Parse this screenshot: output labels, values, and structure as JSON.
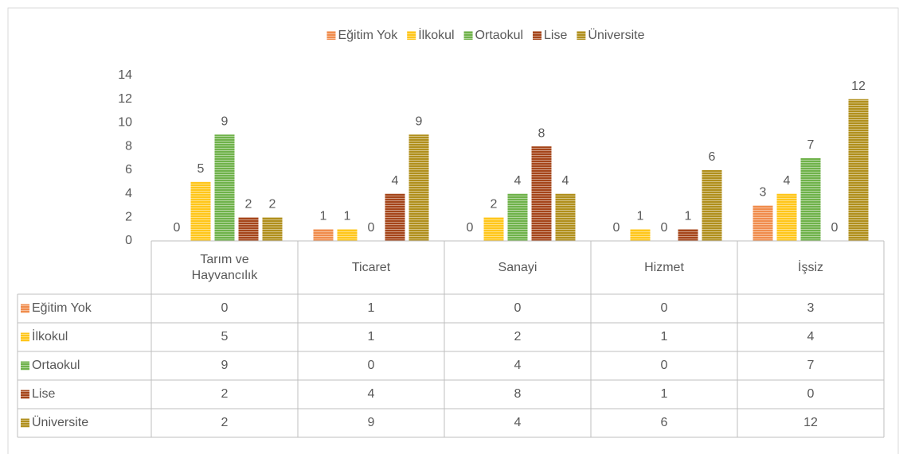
{
  "chart_data": {
    "type": "bar",
    "categories": [
      "Tarım ve Hayvancılık",
      "Ticaret",
      "Sanayi",
      "Hizmet",
      "İşsiz"
    ],
    "series": [
      {
        "name": "Eğitim Yok",
        "color": "#f08c4c",
        "values": [
          0,
          1,
          0,
          0,
          3
        ]
      },
      {
        "name": "İlkokul",
        "color": "#ffc61a",
        "values": [
          5,
          1,
          2,
          1,
          4
        ]
      },
      {
        "name": "Ortaokul",
        "color": "#6fb24a",
        "values": [
          9,
          0,
          4,
          0,
          7
        ]
      },
      {
        "name": "Lise",
        "color": "#a5451a",
        "values": [
          2,
          4,
          8,
          1,
          0
        ]
      },
      {
        "name": "Üniversite",
        "color": "#b08f1c",
        "values": [
          2,
          9,
          4,
          6,
          12
        ]
      }
    ],
    "ylim": [
      0,
      14
    ],
    "yticks": [
      0,
      2,
      4,
      6,
      8,
      10,
      12,
      14
    ],
    "legend": "top",
    "grid": false
  }
}
